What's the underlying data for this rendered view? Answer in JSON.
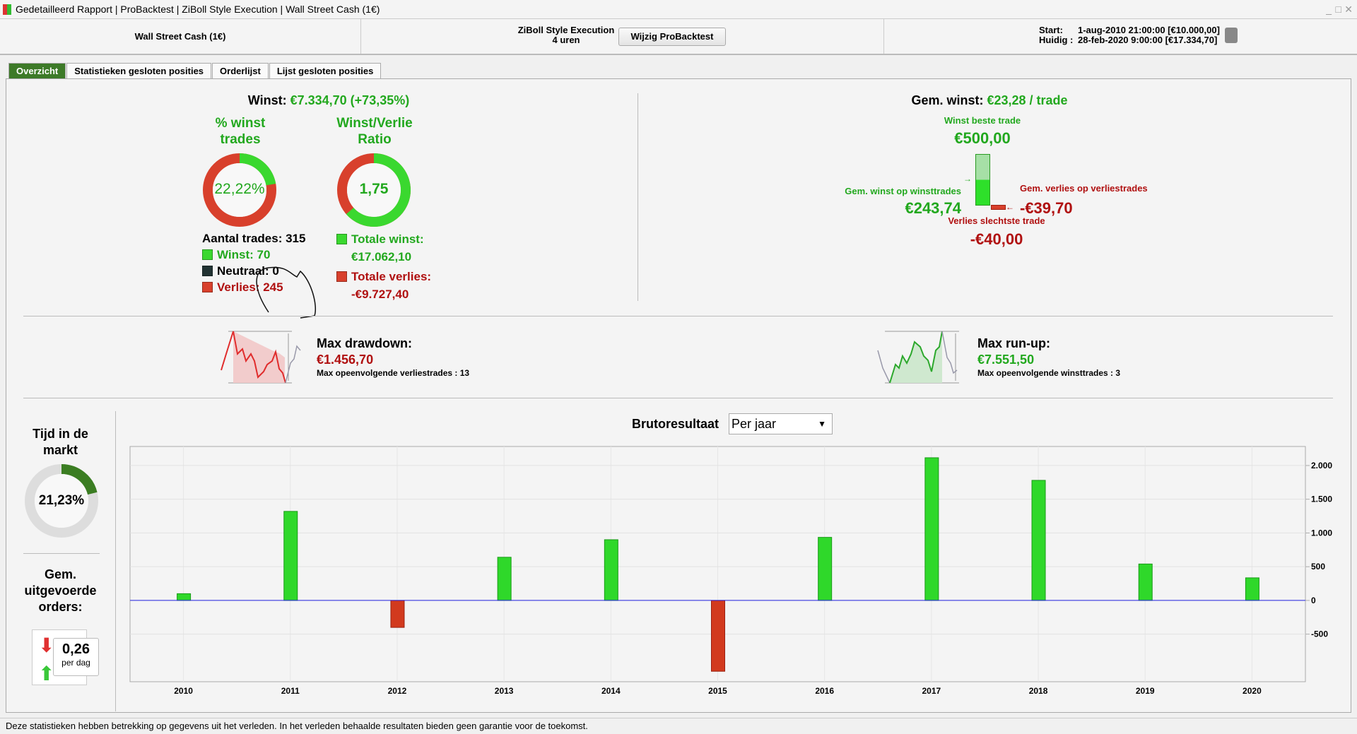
{
  "window": {
    "title": "Gedetailleerd Rapport | ProBacktest | ZiBoll Style Execution | Wall Street Cash (1€)"
  },
  "header": {
    "instrument": "Wall Street Cash (1€)",
    "strategy": "ZiBoll Style Execution",
    "timeframe": "4 uren",
    "edit_button": "Wijzig ProBacktest",
    "start_label": "Start:",
    "start_value": "1-aug-2010 21:00:00 [€10.000,00]",
    "current_label": "Huidig :",
    "current_value": "28-feb-2020 9:00:00 [€17.334,70]"
  },
  "tabs": [
    {
      "label": "Overzicht"
    },
    {
      "label": "Statistieken gesloten posities"
    },
    {
      "label": "Orderlijst"
    },
    {
      "label": "Lijst gesloten posities"
    }
  ],
  "overview": {
    "winst_label": "Winst:",
    "winst_value": "€7.334,70 (+73,35%)",
    "pct_title_1": "% winst",
    "pct_title_2": "trades",
    "pct_value": "22,22%",
    "pct_fraction": 0.2222,
    "ratio_title_1": "Winst/Verlie",
    "ratio_title_2": "Ratio",
    "ratio_value": "1,75",
    "ratio_fraction": 0.636,
    "aantal": "Aantal trades: 315",
    "winst_count": "Winst: 70",
    "neutraal": "Neutraal: 0",
    "verlies": "Verlies: 245",
    "totale_winst_label": "Totale winst:",
    "totale_winst": "€17.062,10",
    "totale_verlies_label": "Totale verlies:",
    "totale_verlies": "-€9.727,40",
    "gem_label": "Gem. winst:",
    "gem_value": "€23,28 / trade",
    "beste_label": "Winst beste trade",
    "beste_value": "€500,00",
    "gem_winst_label": "Gem. winst op winsttrades",
    "gem_winst_value": "€243,74",
    "gem_verlies_label": "Gem. verlies op verliestrades",
    "gem_verlies_value": "-€39,70",
    "slechtste_label": "Verlies slechtste trade",
    "slechtste_value": "-€40,00",
    "dd_label": "Max drawdown:",
    "dd_value": "€1.456,70",
    "dd_sub": "Max opeenvolgende verliestrades : 13",
    "ru_label": "Max run-up:",
    "ru_value": "€7.551,50",
    "ru_sub": "Max opeenvolgende winsttrades : 3",
    "tijd_1": "Tijd in de",
    "tijd_2": "markt",
    "tijd_value": "21,23%",
    "tijd_fraction": 0.2123,
    "orders_1": "Gem.",
    "orders_2": "uitgevoerde",
    "orders_3": "orders:",
    "orders_value": "0,26",
    "orders_unit": "per dag"
  },
  "chart_select": {
    "label": "Brutoresultaat",
    "value": "Per jaar"
  },
  "chart_data": {
    "type": "bar",
    "title": "Brutoresultaat",
    "categories": [
      "2010",
      "2011",
      "2012",
      "2013",
      "2014",
      "2015",
      "2016",
      "2017",
      "2018",
      "2019",
      "2020"
    ],
    "values": [
      100,
      1320,
      -400,
      640,
      900,
      -1050,
      935,
      2115,
      1780,
      540,
      335
    ],
    "yticks": [
      -500,
      0,
      500,
      1000,
      1500,
      2000
    ],
    "ytick_labels": [
      "-500",
      "0",
      "500",
      "1.000",
      "1.500",
      "2.000"
    ],
    "ylim": [
      -1205,
      2282
    ],
    "pos_color": "#2fd82a",
    "neg_color": "#d23a1e"
  },
  "footer": {
    "text": "Deze statistieken hebben betrekking op gegevens uit het verleden. In het verleden behaalde resultaten bieden geen garantie voor de toekomst."
  }
}
